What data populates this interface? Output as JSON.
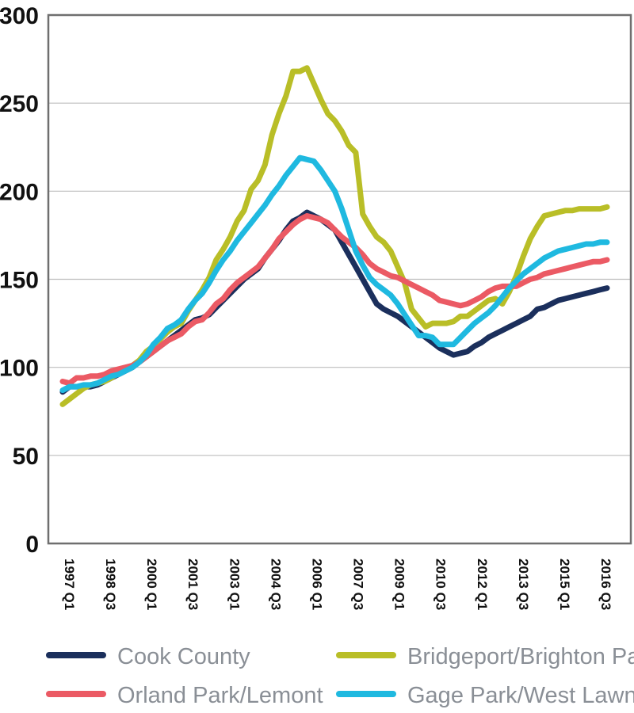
{
  "chart_data": {
    "type": "line",
    "title": "",
    "xlabel": "",
    "ylabel": "",
    "ylim": [
      0,
      300
    ],
    "yticks": [
      0,
      50,
      100,
      150,
      200,
      250,
      300
    ],
    "grid": "horizontal",
    "legend_position": "bottom",
    "categories": [
      "1997 Q1",
      "1998 Q3",
      "2000 Q1",
      "2001 Q3",
      "2003 Q1",
      "2004 Q3",
      "2006 Q1",
      "2007 Q3",
      "2009 Q1",
      "2010 Q3",
      "2012 Q1",
      "2013 Q3",
      "2015 Q1",
      "2016 Q3"
    ],
    "series": [
      {
        "name": "Cook County",
        "color": "#1b2f5c",
        "x": [
          0,
          1,
          2,
          3,
          4,
          5,
          6,
          7,
          8,
          9,
          10,
          11,
          12,
          13,
          14,
          15,
          16,
          17,
          18,
          19,
          20,
          21,
          22,
          23,
          24,
          25,
          26,
          27,
          28,
          29,
          30,
          31,
          32,
          33,
          34,
          35,
          36,
          37,
          38,
          39,
          40,
          41,
          42,
          43,
          44,
          45,
          46,
          47,
          48,
          49,
          50,
          51,
          52,
          53,
          54,
          55,
          56,
          57,
          58,
          59,
          60,
          61,
          62,
          63,
          64,
          65,
          66,
          67,
          68,
          69,
          70,
          71,
          72,
          73,
          74,
          75,
          76,
          77,
          78
        ],
        "values": [
          86,
          89,
          89,
          89,
          89,
          90,
          92,
          94,
          96,
          98,
          100,
          103,
          106,
          109,
          112,
          115,
          118,
          121,
          124,
          127,
          128,
          130,
          134,
          138,
          142,
          146,
          150,
          153,
          156,
          162,
          167,
          172,
          178,
          183,
          185,
          188,
          186,
          184,
          181,
          178,
          171,
          164,
          157,
          150,
          143,
          136,
          133,
          131,
          129,
          126,
          123,
          120,
          117,
          114,
          111,
          109,
          107,
          108,
          109,
          112,
          114,
          117,
          119,
          121,
          123,
          125,
          127,
          129,
          133,
          134,
          136,
          138,
          139,
          140,
          141,
          142,
          143,
          144,
          145
        ]
      },
      {
        "name": "Bridgeport/Brighton Park",
        "color": "#b9be27",
        "x": [
          0,
          1,
          2,
          3,
          4,
          5,
          6,
          7,
          8,
          9,
          10,
          11,
          12,
          13,
          14,
          15,
          16,
          17,
          18,
          19,
          20,
          21,
          22,
          23,
          24,
          25,
          26,
          27,
          28,
          29,
          30,
          31,
          32,
          33,
          34,
          35,
          36,
          37,
          38,
          39,
          40,
          41,
          42,
          43,
          44,
          45,
          46,
          47,
          48,
          49,
          50,
          51,
          52,
          53,
          54,
          55,
          56,
          57,
          58,
          59,
          60,
          61,
          62,
          63,
          64,
          65,
          66,
          67,
          68,
          69,
          70,
          71,
          72,
          73,
          74,
          75,
          76,
          77,
          78
        ],
        "values": [
          79,
          82,
          85,
          88,
          90,
          91,
          92,
          94,
          97,
          99,
          101,
          104,
          109,
          112,
          116,
          120,
          123,
          125,
          132,
          138,
          144,
          151,
          161,
          167,
          174,
          183,
          189,
          201,
          206,
          215,
          232,
          244,
          254,
          268,
          268,
          270,
          261,
          252,
          244,
          240,
          234,
          226,
          222,
          187,
          180,
          174,
          171,
          166,
          157,
          148,
          133,
          128,
          123,
          125,
          125,
          125,
          126,
          129,
          129,
          132,
          135,
          138,
          139,
          136,
          143,
          152,
          163,
          173,
          180,
          186,
          187,
          188,
          189,
          189,
          190,
          190,
          190,
          190,
          191
        ]
      },
      {
        "name": "Orland Park/Lemont",
        "color": "#eb5a64",
        "x": [
          0,
          1,
          2,
          3,
          4,
          5,
          6,
          7,
          8,
          9,
          10,
          11,
          12,
          13,
          14,
          15,
          16,
          17,
          18,
          19,
          20,
          21,
          22,
          23,
          24,
          25,
          26,
          27,
          28,
          29,
          30,
          31,
          32,
          33,
          34,
          35,
          36,
          37,
          38,
          39,
          40,
          41,
          42,
          43,
          44,
          45,
          46,
          47,
          48,
          49,
          50,
          51,
          52,
          53,
          54,
          55,
          56,
          57,
          58,
          59,
          60,
          61,
          62,
          63,
          64,
          65,
          66,
          67,
          68,
          69,
          70,
          71,
          72,
          73,
          74,
          75,
          76,
          77,
          78
        ],
        "values": [
          92,
          91,
          94,
          94,
          95,
          95,
          96,
          98,
          99,
          100,
          101,
          103,
          106,
          109,
          112,
          115,
          117,
          119,
          123,
          126,
          127,
          131,
          136,
          139,
          144,
          148,
          151,
          154,
          157,
          162,
          167,
          173,
          177,
          181,
          184,
          186,
          185,
          184,
          182,
          178,
          174,
          171,
          168,
          164,
          159,
          156,
          154,
          152,
          151,
          149,
          147,
          145,
          143,
          141,
          138,
          137,
          136,
          135,
          136,
          138,
          140,
          143,
          145,
          146,
          146,
          146,
          148,
          150,
          151,
          153,
          154,
          155,
          156,
          157,
          158,
          159,
          160,
          160,
          161
        ]
      },
      {
        "name": "Gage Park/West Lawn",
        "color": "#1fb9e0",
        "x": [
          0,
          1,
          2,
          3,
          4,
          5,
          6,
          7,
          8,
          9,
          10,
          11,
          12,
          13,
          14,
          15,
          16,
          17,
          18,
          19,
          20,
          21,
          22,
          23,
          24,
          25,
          26,
          27,
          28,
          29,
          30,
          31,
          32,
          33,
          34,
          35,
          36,
          37,
          38,
          39,
          40,
          41,
          42,
          43,
          44,
          45,
          46,
          47,
          48,
          49,
          50,
          51,
          52,
          53,
          54,
          55,
          56,
          57,
          58,
          59,
          60,
          61,
          62,
          63,
          64,
          65,
          66,
          67,
          68,
          69,
          70,
          71,
          72,
          73,
          74,
          75,
          76,
          77,
          78
        ],
        "values": [
          87,
          89,
          89,
          90,
          90,
          91,
          93,
          95,
          96,
          98,
          100,
          103,
          107,
          113,
          117,
          122,
          124,
          127,
          133,
          138,
          142,
          148,
          155,
          161,
          166,
          172,
          177,
          182,
          187,
          192,
          198,
          203,
          209,
          214,
          219,
          218,
          217,
          212,
          206,
          200,
          190,
          178,
          166,
          158,
          151,
          147,
          144,
          141,
          136,
          130,
          124,
          118,
          118,
          117,
          113,
          113,
          113,
          117,
          121,
          125,
          128,
          131,
          135,
          140,
          145,
          149,
          153,
          156,
          159,
          162,
          164,
          166,
          167,
          168,
          169,
          170,
          170,
          171,
          171
        ]
      }
    ]
  },
  "legend": [
    {
      "label": "Cook County",
      "color": "#1b2f5c"
    },
    {
      "label": "Bridgeport/Brighton Park",
      "color": "#b9be27"
    },
    {
      "label": "Orland Park/Lemont",
      "color": "#eb5a64"
    },
    {
      "label": "Gage Park/West Lawn",
      "color": "#1fb9e0"
    }
  ]
}
